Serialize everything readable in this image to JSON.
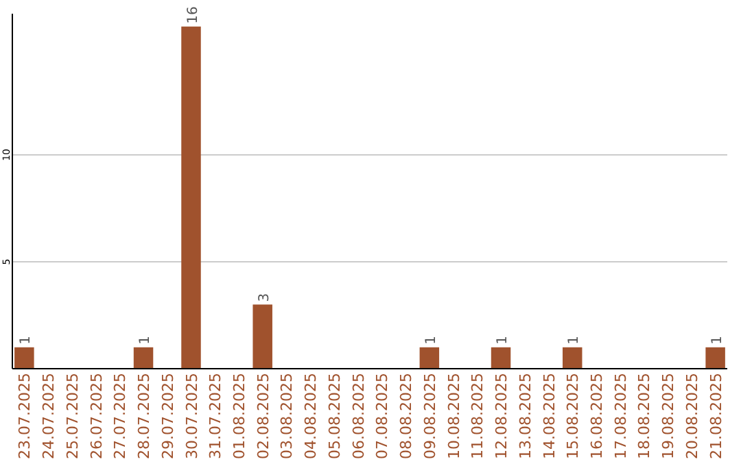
{
  "chart_data": {
    "type": "bar",
    "categories": [
      "23.07.2025",
      "24.07.2025",
      "25.07.2025",
      "26.07.2025",
      "27.07.2025",
      "28.07.2025",
      "29.07.2025",
      "30.07.2025",
      "31.07.2025",
      "01.08.2025",
      "02.08.2025",
      "03.08.2025",
      "04.08.2025",
      "05.08.2025",
      "06.08.2025",
      "07.08.2025",
      "08.08.2025",
      "09.08.2025",
      "10.08.2025",
      "11.08.2025",
      "12.08.2025",
      "13.08.2025",
      "14.08.2025",
      "15.08.2025",
      "16.08.2025",
      "17.08.2025",
      "18.08.2025",
      "19.08.2025",
      "20.08.2025",
      "21.08.2025"
    ],
    "values": [
      1,
      0,
      0,
      0,
      0,
      1,
      0,
      16,
      0,
      0,
      3,
      0,
      0,
      0,
      0,
      0,
      0,
      1,
      0,
      0,
      1,
      0,
      0,
      1,
      0,
      0,
      0,
      0,
      0,
      1
    ],
    "value_labels": [
      "1",
      null,
      null,
      null,
      null,
      "1",
      null,
      "16",
      null,
      null,
      "3",
      null,
      null,
      null,
      null,
      null,
      null,
      "1",
      null,
      null,
      "1",
      null,
      null,
      "1",
      null,
      null,
      null,
      null,
      null,
      "1"
    ],
    "color": "#a0522d",
    "ylim": [
      0,
      16.6
    ],
    "yticks": [
      5,
      10
    ],
    "grid": "y"
  }
}
